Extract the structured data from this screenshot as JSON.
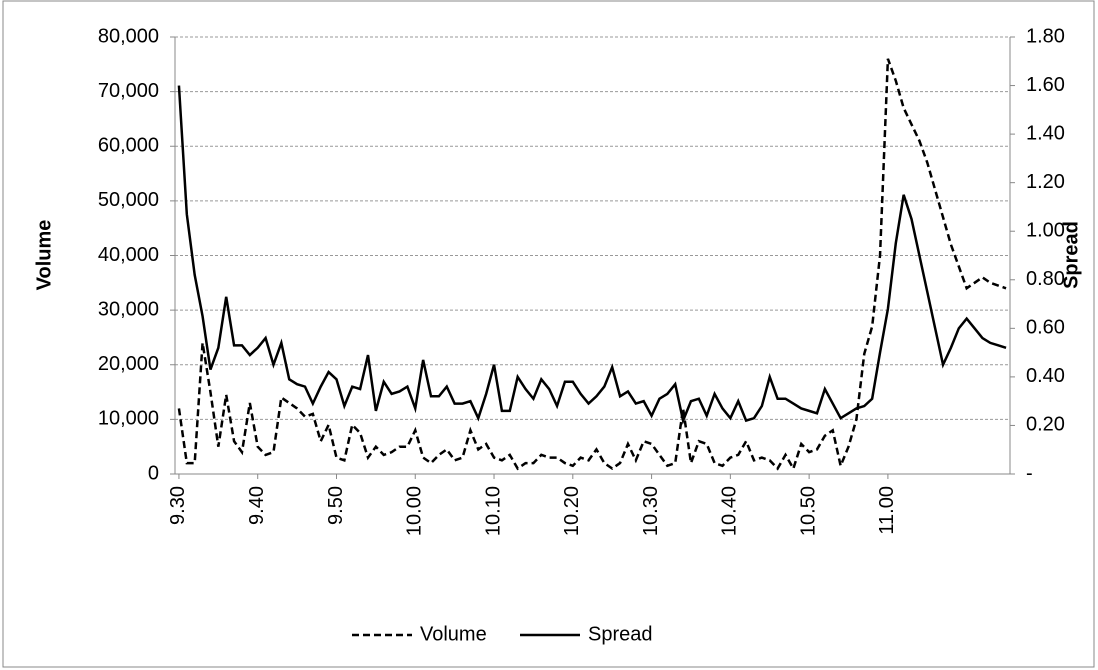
{
  "chart_data": {
    "type": "line",
    "y_label": "Volume",
    "y2_label": "Spread",
    "categories": [
      "9.30",
      null,
      null,
      null,
      null,
      null,
      null,
      null,
      null,
      null,
      "9.40",
      null,
      null,
      null,
      null,
      null,
      null,
      null,
      null,
      null,
      "9.50",
      null,
      null,
      null,
      null,
      null,
      null,
      null,
      null,
      null,
      "10.00",
      null,
      null,
      null,
      null,
      null,
      null,
      null,
      null,
      null,
      "10.10",
      null,
      null,
      null,
      null,
      null,
      null,
      null,
      null,
      null,
      "10.20",
      null,
      null,
      null,
      null,
      null,
      null,
      null,
      null,
      null,
      "10.30",
      null,
      null,
      null,
      null,
      null,
      null,
      null,
      null,
      null,
      "10.40",
      null,
      null,
      null,
      null,
      null,
      null,
      null,
      null,
      null,
      "10.50",
      null,
      null,
      null,
      null,
      null,
      null,
      null,
      null,
      null,
      "11.00",
      null,
      null,
      null,
      null,
      null,
      null,
      null,
      null,
      null,
      null,
      null,
      null,
      null,
      null,
      null
    ],
    "series": [
      {
        "name": "Volume",
        "color": "#000000",
        "line_style": "dashed",
        "axis": "y",
        "values": [
          12000,
          2000,
          2000,
          24000,
          15000,
          5000,
          14500,
          6000,
          4000,
          13000,
          5000,
          3500,
          4000,
          14000,
          13000,
          12000,
          10500,
          11000,
          6000,
          9000,
          3000,
          2500,
          9000,
          7500,
          3000,
          5000,
          3500,
          4000,
          5000,
          5000,
          8000,
          3000,
          2000,
          3500,
          4500,
          2500,
          3000,
          8000,
          4500,
          5500,
          3000,
          2500,
          3500,
          1000,
          2000,
          2000,
          3500,
          3000,
          3000,
          2000,
          1500,
          3000,
          2500,
          4500,
          2000,
          1000,
          2000,
          5500,
          2500,
          6000,
          5500,
          3500,
          1500,
          2000,
          12000,
          2000,
          6000,
          5500,
          2000,
          1500,
          3000,
          3500,
          6000,
          2500,
          3000,
          2500,
          1000,
          3500,
          1000,
          5500,
          4000,
          4500,
          7000,
          8000,
          1500,
          5000,
          10000,
          22000,
          27000,
          40000,
          76000,
          72000,
          67000,
          64000,
          61000,
          57000,
          52000,
          47000,
          42000,
          38000,
          34000,
          35000,
          36000,
          35000,
          34500,
          34000
        ]
      },
      {
        "name": "Spread",
        "color": "#000000",
        "line_style": "solid",
        "axis": "y2",
        "values": [
          1.6,
          1.07,
          0.82,
          0.65,
          0.43,
          0.52,
          0.73,
          0.53,
          0.53,
          0.49,
          0.52,
          0.56,
          0.45,
          0.54,
          0.39,
          0.37,
          0.36,
          0.29,
          0.36,
          0.42,
          0.39,
          0.28,
          0.36,
          0.35,
          0.49,
          0.26,
          0.38,
          0.33,
          0.34,
          0.36,
          0.27,
          0.47,
          0.32,
          0.32,
          0.36,
          0.29,
          0.29,
          0.3,
          0.23,
          0.33,
          0.45,
          0.26,
          0.26,
          0.4,
          0.35,
          0.31,
          0.39,
          0.35,
          0.28,
          0.38,
          0.38,
          0.33,
          0.29,
          0.32,
          0.36,
          0.44,
          0.32,
          0.34,
          0.29,
          0.3,
          0.24,
          0.31,
          0.33,
          0.37,
          0.22,
          0.3,
          0.31,
          0.24,
          0.33,
          0.27,
          0.23,
          0.3,
          0.22,
          0.23,
          0.28,
          0.4,
          0.31,
          0.31,
          0.29,
          0.27,
          0.26,
          0.25,
          0.35,
          0.29,
          0.23,
          0.25,
          0.27,
          0.28,
          0.31,
          0.5,
          0.68,
          0.95,
          1.15,
          1.05,
          0.9,
          0.75,
          0.6,
          0.45,
          0.52,
          0.6,
          0.64,
          0.6,
          0.56,
          0.54,
          0.53,
          0.52
        ]
      }
    ],
    "ylim": [
      0,
      80000
    ],
    "yticks": [
      0,
      {
        "value": 10000,
        "label": "10,000"
      },
      {
        "value": 20000,
        "label": "20,000"
      },
      {
        "value": 30000,
        "label": "30,000"
      },
      {
        "value": 40000,
        "label": "40,000"
      },
      {
        "value": 50000,
        "label": "50,000"
      },
      {
        "value": 60000,
        "label": "60,000"
      },
      {
        "value": 70000,
        "label": "70,000"
      },
      {
        "value": 80000,
        "label": "80,000"
      }
    ],
    "y2lim": [
      0,
      1.8
    ],
    "y2ticks": [
      {
        "value": 0,
        "label": "-"
      },
      {
        "value": 0.2,
        "label": "0.20"
      },
      {
        "value": 0.4,
        "label": "0.40"
      },
      {
        "value": 0.6,
        "label": "0.60"
      },
      {
        "value": 0.8,
        "label": "0.80"
      },
      {
        "value": 1.0,
        "label": "1.00"
      },
      {
        "value": 1.2,
        "label": "1.20"
      },
      {
        "value": 1.4,
        "label": "1.40"
      },
      {
        "value": 1.6,
        "label": "1.60"
      },
      {
        "value": 1.8,
        "label": "1.80"
      }
    ],
    "grid": true,
    "legend": "bottom"
  }
}
